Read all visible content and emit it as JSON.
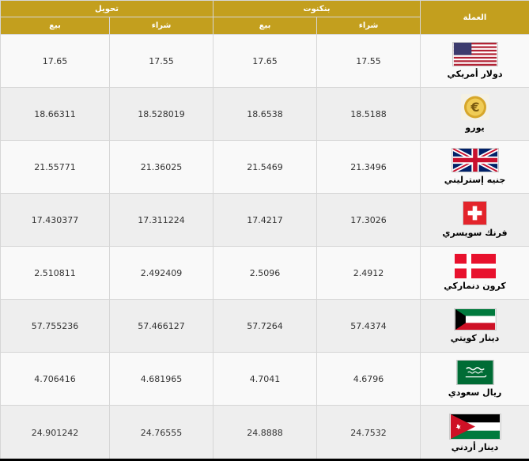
{
  "header": {
    "currency_label": "العملة",
    "bank_label": "بنكنوت",
    "transfer_label": "تحويل",
    "buy_label": "شراء",
    "sell_label": "بيع"
  },
  "colors": {
    "header_bg": "#c39f1e",
    "header_text": "#ffffff",
    "row_odd": "#f9f9f9",
    "row_even": "#eeeeee"
  },
  "rows": [
    {
      "flag": "us-flag-icon",
      "name": "دولار أمريكي",
      "bank_buy": "17.55",
      "bank_sell": "17.65",
      "transfer_buy": "17.55",
      "transfer_sell": "17.65"
    },
    {
      "flag": "euro-icon",
      "name": "يورو",
      "bank_buy": "18.5188",
      "bank_sell": "18.6538",
      "transfer_buy": "18.528019",
      "transfer_sell": "18.66311"
    },
    {
      "flag": "uk-flag-icon",
      "name": "جنيه إسترليني",
      "bank_buy": "21.3496",
      "bank_sell": "21.5469",
      "transfer_buy": "21.36025",
      "transfer_sell": "21.55771"
    },
    {
      "flag": "swiss-flag-icon",
      "name": "فرنك سويسري",
      "bank_buy": "17.3026",
      "bank_sell": "17.4217",
      "transfer_buy": "17.311224",
      "transfer_sell": "17.430377"
    },
    {
      "flag": "danish-flag-icon",
      "name": "كرون دنماركي",
      "bank_buy": "2.4912",
      "bank_sell": "2.5096",
      "transfer_buy": "2.492409",
      "transfer_sell": "2.510811"
    },
    {
      "flag": "kuwait-flag-icon",
      "name": "دينار كويتي",
      "bank_buy": "57.4374",
      "bank_sell": "57.7264",
      "transfer_buy": "57.466127",
      "transfer_sell": "57.755236"
    },
    {
      "flag": "saudi-flag-icon",
      "name": "ريال سعودي",
      "bank_buy": "4.6796",
      "bank_sell": "4.7041",
      "transfer_buy": "4.681965",
      "transfer_sell": "4.706416"
    },
    {
      "flag": "jordan-flag-icon",
      "name": "دينار أردني",
      "bank_buy": "24.7532",
      "bank_sell": "24.8888",
      "transfer_buy": "24.76555",
      "transfer_sell": "24.901242"
    }
  ]
}
